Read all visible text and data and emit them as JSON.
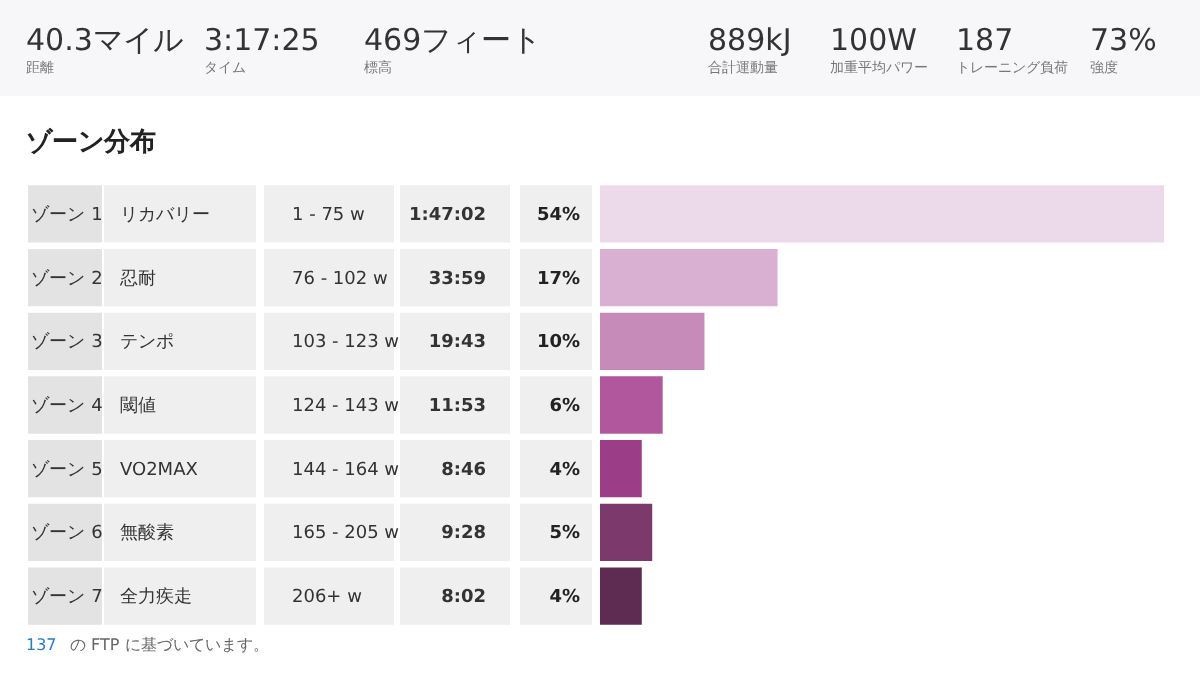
{
  "chart_data": {
    "type": "bar",
    "orientation": "horizontal",
    "title": "ゾーン分布",
    "categories": [
      "ゾーン 1",
      "ゾーン 2",
      "ゾーン 3",
      "ゾーン 4",
      "ゾーン 5",
      "ゾーン 6",
      "ゾーン 7"
    ],
    "values": [
      54,
      17,
      10,
      6,
      4,
      5,
      4
    ],
    "value_labels": [
      "54%",
      "17%",
      "10%",
      "6%",
      "4%",
      "5%",
      "4%"
    ],
    "colors": [
      "#ecd9e9",
      "#d9b0d1",
      "#c78bb9",
      "#b0579e",
      "#9b3e87",
      "#7c3a6c",
      "#5e2c53"
    ],
    "annotations": [
      "40.3マイル",
      "距離",
      "3:17:25",
      "タイム",
      "469フィート",
      "標高",
      "889kJ",
      "合計運動量",
      "100W",
      "加重平均パワー",
      "187",
      "トレーニング負荷",
      "73%",
      "強度",
      "リカバリー",
      "1 - 75 w",
      "1:47:02",
      "忍耐",
      "76 - 102 w",
      "33:59",
      "テンポ",
      "103 - 123 w",
      "19:43",
      "閾値",
      "124 - 143 w",
      "11:53",
      "VO2MAX",
      "144 - 164 w",
      "8:46",
      "無酸素",
      "165 - 205 w",
      "9:28",
      "全力疾走",
      "206+ w",
      "8:02",
      "137",
      "の FTP に基づいています。"
    ]
  }
}
